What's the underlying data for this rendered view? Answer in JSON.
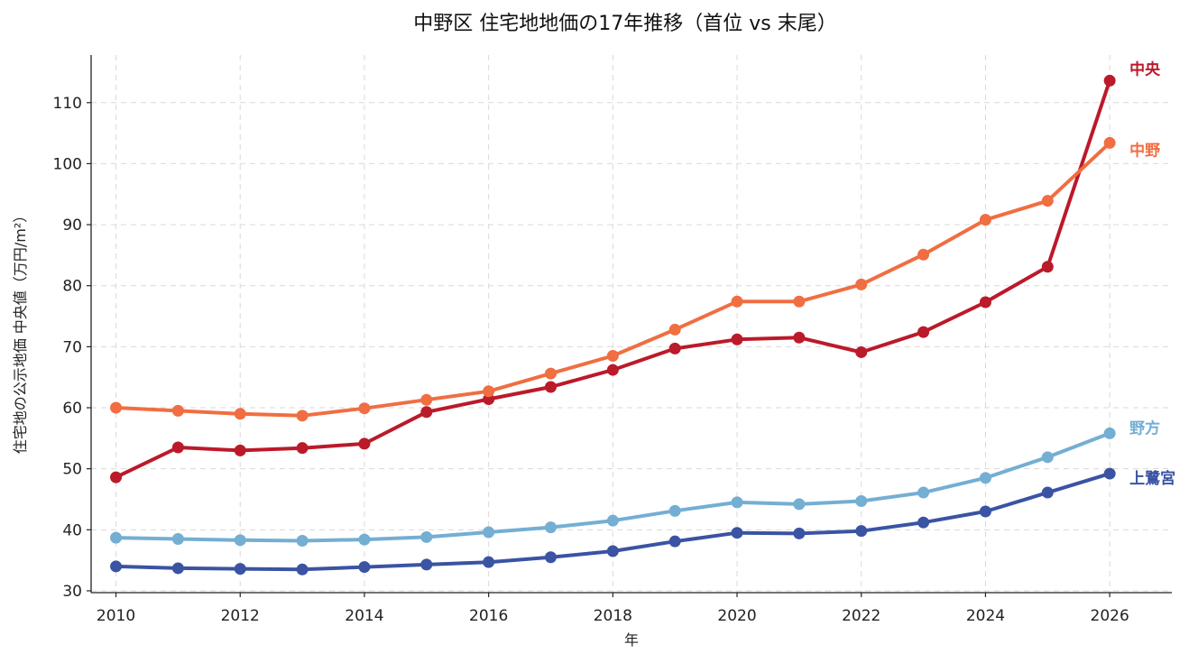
{
  "chart_data": {
    "type": "line",
    "title": "中野区 住宅地地価の17年推移（首位 vs 末尾）",
    "xlabel": "年",
    "ylabel": "住宅地の公示地価 中央値（万円/m²）",
    "xlim": [
      2009.6,
      2027
    ],
    "ylim": [
      29.7,
      117.8
    ],
    "x": [
      2010,
      2011,
      2012,
      2013,
      2014,
      2015,
      2016,
      2017,
      2018,
      2019,
      2020,
      2021,
      2022,
      2023,
      2024,
      2025,
      2026
    ],
    "xticks": [
      2010,
      2012,
      2014,
      2016,
      2018,
      2020,
      2022,
      2024,
      2026
    ],
    "yticks": [
      30,
      40,
      50,
      60,
      70,
      80,
      90,
      100,
      110
    ],
    "grid": true,
    "legend": "direct labels at line ends",
    "series": [
      {
        "name": "中央",
        "color": "#bb1a2a",
        "values": [
          48.6,
          53.5,
          53.0,
          53.4,
          54.1,
          59.3,
          61.4,
          63.4,
          66.2,
          69.7,
          71.2,
          71.5,
          69.1,
          72.4,
          77.3,
          83.1,
          113.6
        ]
      },
      {
        "name": "中野",
        "color": "#f06e42",
        "values": [
          60.0,
          59.5,
          59.0,
          58.7,
          59.9,
          61.3,
          62.7,
          65.6,
          68.5,
          72.8,
          77.4,
          77.4,
          80.2,
          85.1,
          90.8,
          93.9,
          103.4
        ]
      },
      {
        "name": "野方",
        "color": "#74aed3",
        "values": [
          38.7,
          38.5,
          38.3,
          38.2,
          38.4,
          38.8,
          39.6,
          40.4,
          41.5,
          43.1,
          44.5,
          44.2,
          44.7,
          46.1,
          48.5,
          51.9,
          55.8
        ]
      },
      {
        "name": "上鷺宮",
        "color": "#3a53a3",
        "values": [
          34.0,
          33.7,
          33.6,
          33.5,
          33.9,
          34.3,
          34.7,
          35.5,
          36.5,
          38.1,
          39.5,
          39.4,
          39.8,
          41.2,
          43.0,
          46.1,
          49.2
        ]
      }
    ]
  }
}
